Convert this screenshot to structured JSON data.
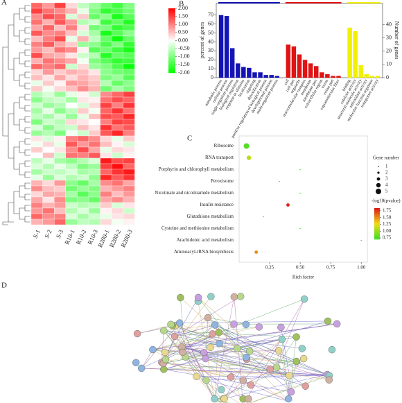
{
  "heatmap": {
    "panel": "A",
    "columns": [
      "S-1",
      "S-2",
      "S-3",
      "R10-1",
      "R10-2",
      "R10-3",
      "R200-1",
      "R200-2",
      "R200-3"
    ],
    "scale": {
      "lim": [
        -2,
        2
      ],
      "ticks": [
        {
          "value": 2,
          "label": "2.00"
        },
        {
          "value": 1.5,
          "label": "1.50"
        },
        {
          "value": 1,
          "label": "1.00"
        },
        {
          "value": 0.5,
          "label": "0.50"
        },
        {
          "value": 0,
          "label": "0.00"
        },
        {
          "value": -0.5,
          "label": "-0.50"
        },
        {
          "value": -1,
          "label": "-1.00"
        },
        {
          "value": -1.5,
          "label": "-1.50"
        },
        {
          "value": -2,
          "label": "-2.00"
        }
      ]
    },
    "values": [
      [
        1.2,
        0.8,
        1.5,
        0.3,
        -0.5,
        -0.8,
        -1.2,
        -1.5,
        -1.0
      ],
      [
        1.5,
        1.1,
        0.9,
        0.6,
        -0.2,
        -1.0,
        -1.6,
        -1.4,
        -1.1
      ],
      [
        0.9,
        1.4,
        1.2,
        -0.3,
        0.4,
        -1.2,
        -0.9,
        -1.8,
        -1.3
      ],
      [
        1.1,
        0.6,
        1.3,
        0.8,
        -0.6,
        -0.4,
        -1.5,
        -1.2,
        -1.7
      ],
      [
        0.7,
        1.2,
        0.5,
        1.0,
        0.2,
        -1.1,
        -1.0,
        -1.6,
        -1.4
      ],
      [
        1.3,
        0.9,
        1.0,
        0.5,
        -0.3,
        -0.7,
        -1.8,
        -1.3,
        -0.9
      ],
      [
        0.5,
        1.0,
        1.4,
        -0.2,
        0.6,
        -0.5,
        -1.2,
        -1.9,
        -1.2
      ],
      [
        1.0,
        1.3,
        0.7,
        0.4,
        -0.8,
        -0.9,
        -1.4,
        -1.0,
        -1.6
      ],
      [
        0.8,
        0.5,
        1.1,
        0.9,
        0.1,
        -1.3,
        -1.1,
        -1.5,
        -1.8
      ],
      [
        1.4,
        0.7,
        0.6,
        0.2,
        -0.4,
        -0.6,
        -1.7,
        -1.2,
        -1.3
      ],
      [
        0.6,
        1.1,
        0.9,
        0.7,
        -0.1,
        -1.0,
        -1.3,
        -1.6,
        -1.5
      ],
      [
        1.2,
        1.0,
        1.2,
        -0.4,
        0.3,
        -0.8,
        -1.0,
        -1.4,
        -1.9
      ],
      [
        0.3,
        0.8,
        0.4,
        0.6,
        0.5,
        0.2,
        -0.9,
        -1.1,
        -1.2
      ],
      [
        0.5,
        0.2,
        0.7,
        0.3,
        0.6,
        0.4,
        -1.0,
        -0.8,
        -1.3
      ],
      [
        -0.2,
        0.4,
        0.1,
        0.8,
        0.7,
        0.5,
        -0.6,
        -1.2,
        -0.9
      ],
      [
        0.4,
        -0.1,
        0.3,
        0.5,
        0.9,
        0.6,
        -1.1,
        -0.7,
        -1.0
      ],
      [
        -0.6,
        -0.3,
        -0.8,
        -0.2,
        0.1,
        -0.4,
        0.9,
        1.2,
        1.5
      ],
      [
        -0.9,
        -0.5,
        -0.4,
        -0.7,
        0.2,
        0.1,
        1.1,
        1.4,
        1.2
      ],
      [
        -0.4,
        -0.8,
        -0.6,
        0.0,
        -0.3,
        0.3,
        1.5,
        1.0,
        1.6
      ],
      [
        -0.7,
        -0.2,
        -0.9,
        -0.5,
        0.4,
        -0.1,
        1.2,
        1.6,
        1.1
      ],
      [
        -0.5,
        -0.7,
        -0.3,
        -0.8,
        -0.2,
        0.5,
        1.4,
        1.3,
        1.7
      ],
      [
        -1.0,
        -0.4,
        -0.6,
        0.3,
        0.2,
        0.0,
        1.0,
        1.5,
        1.4
      ],
      [
        -0.3,
        -0.9,
        -0.5,
        -0.4,
        0.5,
        0.2,
        1.6,
        1.1,
        1.3
      ],
      [
        -0.8,
        -0.6,
        -1.0,
        -0.1,
        -0.4,
        0.4,
        1.3,
        1.7,
        1.0
      ],
      [
        0.2,
        -0.3,
        0.1,
        1.0,
        1.2,
        0.9,
        0.3,
        -0.2,
        0.4
      ],
      [
        -0.1,
        0.3,
        -0.2,
        1.3,
        0.8,
        1.1,
        0.5,
        0.1,
        -0.3
      ],
      [
        0.4,
        0.0,
        0.2,
        0.9,
        1.4,
        0.7,
        -0.2,
        0.3,
        0.2
      ],
      [
        0.0,
        0.5,
        -0.4,
        1.1,
        1.0,
        1.3,
        0.2,
        -0.4,
        0.1
      ],
      [
        -0.5,
        -0.2,
        -0.7,
        -0.9,
        -0.6,
        -0.3,
        1.8,
        1.4,
        1.5
      ],
      [
        -0.3,
        -0.6,
        -0.2,
        -0.5,
        -1.0,
        -0.8,
        1.5,
        1.9,
        1.2
      ],
      [
        -0.7,
        -0.4,
        -0.5,
        -0.3,
        -0.7,
        -0.6,
        1.2,
        1.6,
        1.8
      ],
      [
        -0.2,
        -0.8,
        -0.3,
        -0.6,
        -0.4,
        -0.9,
        1.7,
        1.3,
        1.6
      ],
      [
        0.6,
        0.3,
        0.8,
        -0.9,
        -1.2,
        -0.7,
        0.9,
        1.1,
        0.7
      ],
      [
        0.9,
        0.5,
        0.4,
        -1.1,
        -0.8,
        -1.0,
        0.6,
        0.8,
        1.0
      ],
      [
        0.3,
        0.7,
        0.6,
        -0.7,
        -1.3,
        -0.9,
        1.0,
        0.5,
        0.8
      ],
      [
        0.7,
        0.2,
        0.9,
        -1.0,
        -0.9,
        -1.2,
        0.7,
        0.9,
        0.6
      ],
      [
        1.0,
        0.6,
        0.8,
        -0.4,
        -0.6,
        -0.5,
        0.4,
        -0.3,
        0.2
      ],
      [
        0.8,
        1.1,
        0.5,
        -0.6,
        -0.3,
        -0.8,
        0.1,
        0.3,
        -0.4
      ],
      [
        1.2,
        0.9,
        1.0,
        -0.3,
        -0.7,
        -0.4,
        -0.2,
        0.2,
        0.3
      ],
      [
        0.6,
        0.8,
        1.2,
        -0.8,
        -0.5,
        -0.6,
        0.3,
        -0.1,
        0.1
      ]
    ]
  },
  "go_bar": {
    "panel": "B",
    "ylabel": "percent of genes",
    "y2label": "Number of genes",
    "ylim": [
      0,
      83
    ],
    "yticks": [
      0,
      10,
      20,
      30,
      40,
      50,
      60,
      70
    ],
    "y2lim": [
      0,
      56
    ],
    "y2ticks": [
      0,
      10,
      20,
      30,
      40
    ],
    "groups": [
      {
        "color": "#1414b4",
        "categories": [
          "metabolic process",
          "cellular process",
          "single-organism process",
          "biological regulation",
          "response to stimulus",
          "localization",
          "signaling",
          "detoxification",
          "positive regulation of biological process",
          "developmental process",
          "multi-organism process"
        ],
        "values": [
          70,
          69,
          33,
          16,
          12,
          11,
          6,
          6,
          3,
          3,
          2
        ]
      },
      {
        "color": "#e01414",
        "categories": [
          "cell",
          "cell part",
          "organelle",
          "macromolecular complex",
          "membrane",
          "membrane part",
          "extracellular region",
          "virion",
          "virion part",
          "supramolecular fiber"
        ],
        "values": [
          37,
          35,
          26,
          20,
          16,
          13,
          6,
          4,
          2,
          2
        ]
      },
      {
        "color": "#f0f000",
        "categories": [
          "binding",
          "catalytic activity",
          "structural molecule activity",
          "antioxidant activity",
          "molecular function regulator",
          "transporter activity"
        ],
        "values": [
          56,
          52,
          14,
          4,
          2,
          2
        ]
      }
    ]
  },
  "kegg": {
    "panel": "C",
    "xlabel": "Rich factor",
    "xlim": [
      0,
      1.05
    ],
    "xticks": [
      {
        "value": 0.25,
        "label": "0.25"
      },
      {
        "value": 0.5,
        "label": "0.50"
      },
      {
        "value": 0.75,
        "label": "0.75"
      },
      {
        "value": 1,
        "label": "1.00"
      }
    ],
    "categories": [
      "Ribosome",
      "RNA transport",
      "Porphyrin and chlorophyll metabolism",
      "Peroxisome",
      "Nicotinate and nicotinamide metabolism",
      "Insulin resistance",
      "Glutathione metabolism",
      "Cysteine and methionine metabolism",
      "Arachidonic acid metabolism",
      "Aminoacyl-tRNA biosynthesis"
    ],
    "x": [
      0.06,
      0.08,
      0.5,
      0.33,
      0.5,
      0.4,
      0.2,
      0.5,
      1,
      0.14
    ],
    "size": [
      5,
      4,
      1,
      1,
      1,
      3,
      1,
      1,
      1,
      3
    ],
    "pvalue": [
      0.78,
      1.1,
      0.72,
      0.72,
      0.72,
      1.8,
      0.72,
      0.72,
      0.72,
      1.5
    ],
    "size_title": "Gene number",
    "size_ticks": [
      1,
      2,
      3,
      4,
      5
    ],
    "color_title": "-log10(pvalue)",
    "color_lim": [
      0.7,
      1.85
    ],
    "color_ticks": [
      {
        "value": 1.75,
        "label": "1.75"
      },
      {
        "value": 1.5,
        "label": "1.50"
      },
      {
        "value": 1.25,
        "label": "1.25"
      },
      {
        "value": 1,
        "label": "1.00"
      },
      {
        "value": 0.75,
        "label": "0.75"
      }
    ]
  },
  "network": {
    "panel": "D"
  }
}
